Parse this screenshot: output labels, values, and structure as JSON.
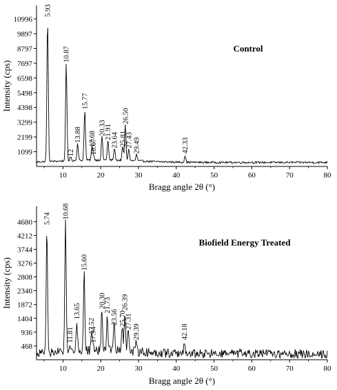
{
  "chart_data": [
    {
      "type": "line",
      "title": "Control",
      "xlabel": "Bragg angle 2θ (°)",
      "ylabel": "Intensity (cps)",
      "xlim": [
        3,
        80
      ],
      "ylim": [
        0,
        12000
      ],
      "xticks": [
        10,
        20,
        30,
        40,
        50,
        60,
        70,
        80
      ],
      "yticks": [
        1099,
        2199,
        3299,
        4398,
        5498,
        6598,
        7697,
        8797,
        9897,
        10996
      ],
      "baseline": 300,
      "peaks": [
        {
          "x": 5.93,
          "y": 10996,
          "label": "5.93"
        },
        {
          "x": 10.87,
          "y": 7600,
          "label": "10.87"
        },
        {
          "x": 12.0,
          "y": 600,
          "label": "12"
        },
        {
          "x": 13.88,
          "y": 1600,
          "label": "13.88"
        },
        {
          "x": 15.77,
          "y": 4100,
          "label": "15.77"
        },
        {
          "x": 17.68,
          "y": 1300,
          "label": "17.68"
        },
        {
          "x": 18.07,
          "y": 700,
          "label": "18.07"
        },
        {
          "x": 20.33,
          "y": 2100,
          "label": "20.33"
        },
        {
          "x": 21.91,
          "y": 1800,
          "label": "21.91"
        },
        {
          "x": 23.64,
          "y": 1200,
          "label": "23.64"
        },
        {
          "x": 25.81,
          "y": 1300,
          "label": "25.81"
        },
        {
          "x": 26.5,
          "y": 3000,
          "label": "26.50"
        },
        {
          "x": 27.43,
          "y": 1200,
          "label": "27.43"
        },
        {
          "x": 29.49,
          "y": 800,
          "label": "29.49"
        },
        {
          "x": 42.33,
          "y": 800,
          "label": "42.33"
        }
      ]
    },
    {
      "type": "line",
      "title": "Biofield Energy Treated",
      "xlabel": "Bragg angle 2θ (°)",
      "ylabel": "Intensity (cps)",
      "xlim": [
        3,
        80
      ],
      "ylim": [
        0,
        5200
      ],
      "xticks": [
        10,
        20,
        30,
        40,
        50,
        60,
        70,
        80
      ],
      "yticks": [
        468,
        936,
        1404,
        1872,
        2340,
        2808,
        3276,
        3744,
        4212,
        4680
      ],
      "baseline": 200,
      "peaks": [
        {
          "x": 5.74,
          "y": 4500,
          "label": "5.74"
        },
        {
          "x": 10.68,
          "y": 4680,
          "label": "10.68"
        },
        {
          "x": 11.81,
          "y": 500,
          "label": "11.81"
        },
        {
          "x": 13.65,
          "y": 1300,
          "label": "13.65"
        },
        {
          "x": 15.6,
          "y": 2950,
          "label": "15.60"
        },
        {
          "x": 17.52,
          "y": 800,
          "label": "17.52"
        },
        {
          "x": 17.94,
          "y": 500,
          "label": "17.94"
        },
        {
          "x": 20.3,
          "y": 1650,
          "label": "20.30"
        },
        {
          "x": 21.73,
          "y": 1500,
          "label": "21.73"
        },
        {
          "x": 23.56,
          "y": 1100,
          "label": "23.56"
        },
        {
          "x": 25.7,
          "y": 1050,
          "label": "25.70"
        },
        {
          "x": 26.39,
          "y": 1600,
          "label": "26.39"
        },
        {
          "x": 27.31,
          "y": 950,
          "label": "27.31"
        },
        {
          "x": 29.39,
          "y": 600,
          "label": "29.39"
        },
        {
          "x": 42.18,
          "y": 600,
          "label": "42.18"
        }
      ]
    }
  ]
}
